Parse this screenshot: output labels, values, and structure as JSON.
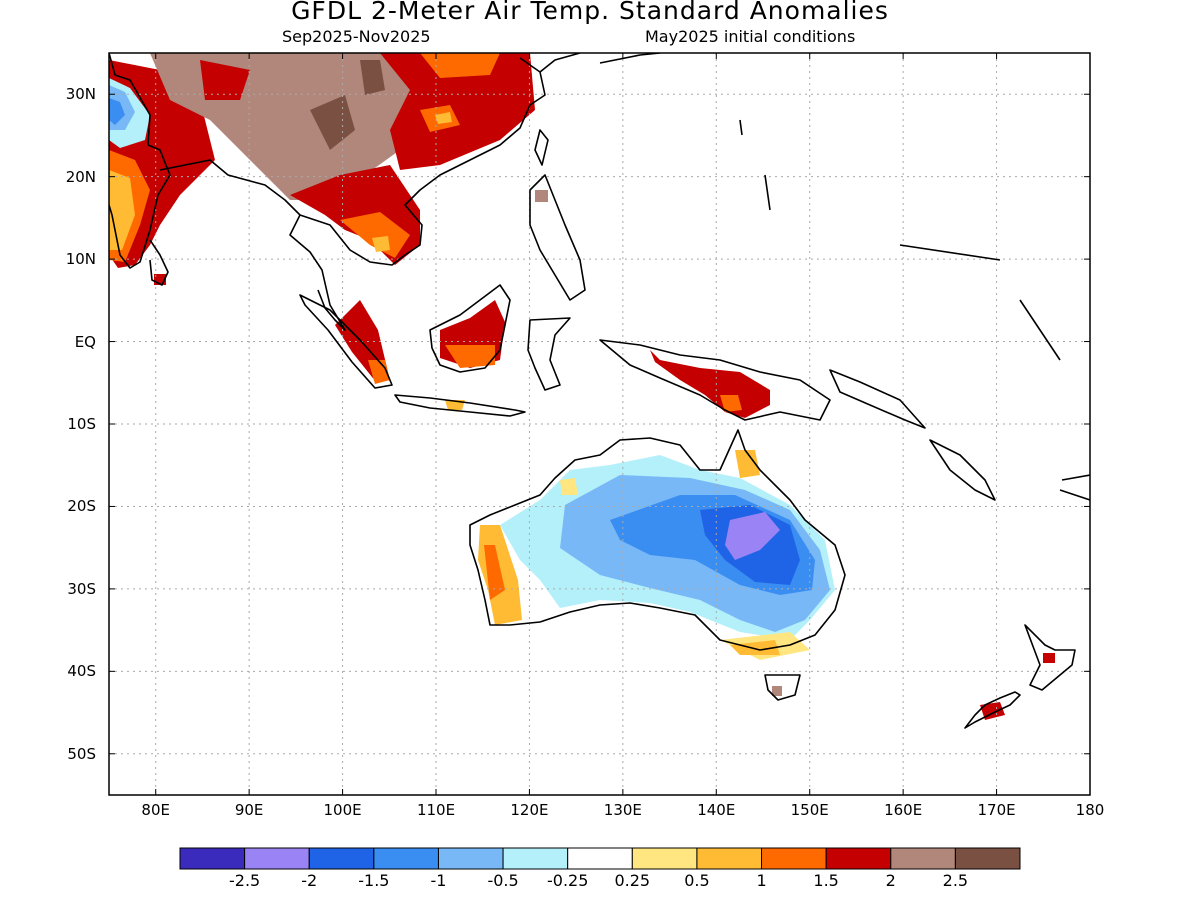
{
  "title": "GFDL 2-Meter Air Temp. Standard Anomalies",
  "subtitle_left": "Sep2025-Nov2025",
  "subtitle_right": "May2025 initial conditions",
  "lat_labels": [
    "30N",
    "20N",
    "10N",
    "EQ",
    "10S",
    "20S",
    "30S",
    "40S",
    "50S"
  ],
  "lon_labels": [
    "80E",
    "90E",
    "100E",
    "110E",
    "120E",
    "130E",
    "140E",
    "150E",
    "160E",
    "170E",
    "180"
  ],
  "colorbar": {
    "colors": [
      "#3b2bbd",
      "#9a84f5",
      "#1f64e6",
      "#3a8ef2",
      "#78b8f7",
      "#b4f0fa",
      "#ffffff",
      "#ffe680",
      "#ffbb33",
      "#ff6a00",
      "#c40000",
      "#b0877a",
      "#7a5043"
    ],
    "labels": [
      "-2.5",
      "-2",
      "-1.5",
      "-1",
      "-0.5",
      "-0.25",
      "0.25",
      "0.5",
      "1",
      "1.5",
      "2",
      "2.5"
    ]
  },
  "map": {
    "lon_range": [
      75,
      180
    ],
    "lat_range": [
      -55,
      35
    ],
    "grid_lons": [
      80,
      90,
      100,
      110,
      120,
      130,
      140,
      150,
      160,
      170
    ],
    "grid_lats": [
      30,
      20,
      10,
      0,
      -10,
      -20,
      -30,
      -40,
      -50
    ]
  }
}
